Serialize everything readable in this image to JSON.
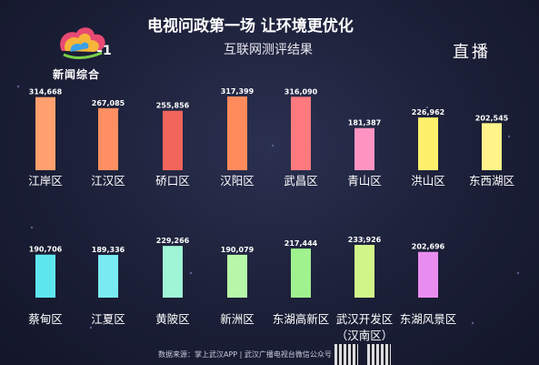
{
  "header": {
    "title_plain": "电视问政第一场",
    "title_emphasis": "让环境更优化",
    "subtitle": "互联网测评结果",
    "live": "直播"
  },
  "logo": {
    "channel_number": "1",
    "channel_name": "新闻综合"
  },
  "footer": {
    "source": "数据来源：掌上武汉APP | 武汉广播电视台微信公众号"
  },
  "colors": {
    "orange": "#ff9a66",
    "salmon": "#ff7a6a",
    "red": "#f25f58",
    "pink": "#ff8fb8",
    "yellow": "#fff07a",
    "cyan": "#66e3ee",
    "lightgreen": "#b8f5a0",
    "violet": "#e98cf0",
    "mint": "#9ff5d0"
  },
  "chart_data": {
    "type": "bar",
    "title": "互联网测评结果",
    "rows": [
      {
        "categories": [
          "江岸区",
          "江汉区",
          "硚口区",
          "汉阳区",
          "武昌区",
          "青山区",
          "洪山区",
          "东西湖区"
        ],
        "values": [
          314668,
          267085,
          255856,
          317399,
          316090,
          181387,
          226962,
          202545
        ],
        "display": [
          "314,668",
          "267,085",
          "255,856",
          "317,399",
          "316,090",
          "181,387",
          "226,962",
          "202,545"
        ],
        "colors": [
          "#ffa06e",
          "#ff8f62",
          "#f2655b",
          "#ff8a5c",
          "#ff7a7e",
          "#ff94c2",
          "#fff06c",
          "#fff38a"
        ]
      },
      {
        "categories": [
          "蔡甸区",
          "江夏区",
          "黄陂区",
          "新洲区",
          "东湖高新区",
          "武汉开发区\n（汉南区）",
          "东湖风景区"
        ],
        "values": [
          190706,
          189336,
          229266,
          190079,
          217444,
          233926,
          202696
        ],
        "display": [
          "190,706",
          "189,336",
          "229,266",
          "190,079",
          "217,444",
          "233,926",
          "202,696"
        ],
        "colors": [
          "#5ee6ee",
          "#7aeaf2",
          "#9ff5d6",
          "#b6f7a8",
          "#9ff28e",
          "#d2f58a",
          "#e98cf0"
        ]
      }
    ]
  }
}
